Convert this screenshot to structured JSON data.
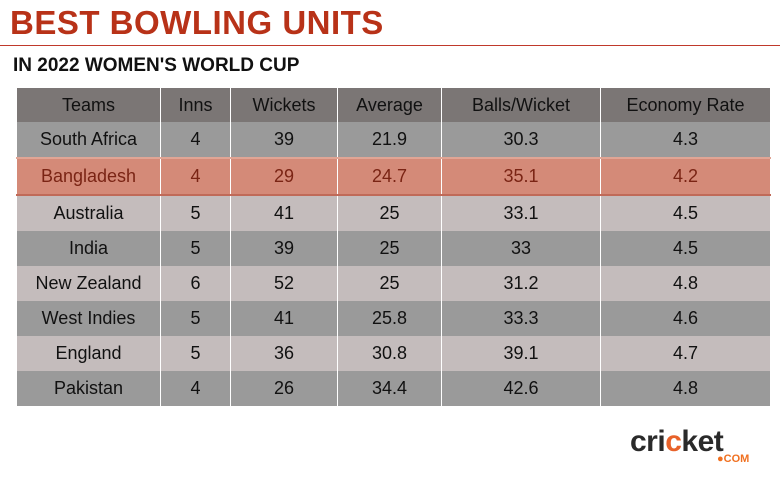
{
  "title": "BEST BOWLING UNITS",
  "subtitle": "IN 2022 WOMEN'S WORLD CUP",
  "logo": {
    "text_a": "cri",
    "text_b": "c",
    "text_c": "ket",
    "suffix": "●COM"
  },
  "chart_data": {
    "type": "table",
    "columns": [
      "Teams",
      "Inns",
      "Wickets",
      "Average",
      "Balls/Wicket",
      "Economy Rate"
    ],
    "highlight_row": "Bangladesh",
    "highlight_color": "#d48a78",
    "rows": [
      [
        "South Africa",
        "4",
        "39",
        "21.9",
        "30.3",
        "4.3"
      ],
      [
        "Bangladesh",
        "4",
        "29",
        "24.7",
        "35.1",
        "4.2"
      ],
      [
        "Australia",
        "5",
        "41",
        "25",
        "33.1",
        "4.5"
      ],
      [
        "India",
        "5",
        "39",
        "25",
        "33",
        "4.5"
      ],
      [
        "New Zealand",
        "6",
        "52",
        "25",
        "31.2",
        "4.8"
      ],
      [
        "West Indies",
        "5",
        "41",
        "25.8",
        "33.3",
        "4.6"
      ],
      [
        "England",
        "5",
        "36",
        "30.8",
        "39.1",
        "4.7"
      ],
      [
        "Pakistan",
        "4",
        "26",
        "34.4",
        "42.6",
        "4.8"
      ]
    ]
  }
}
